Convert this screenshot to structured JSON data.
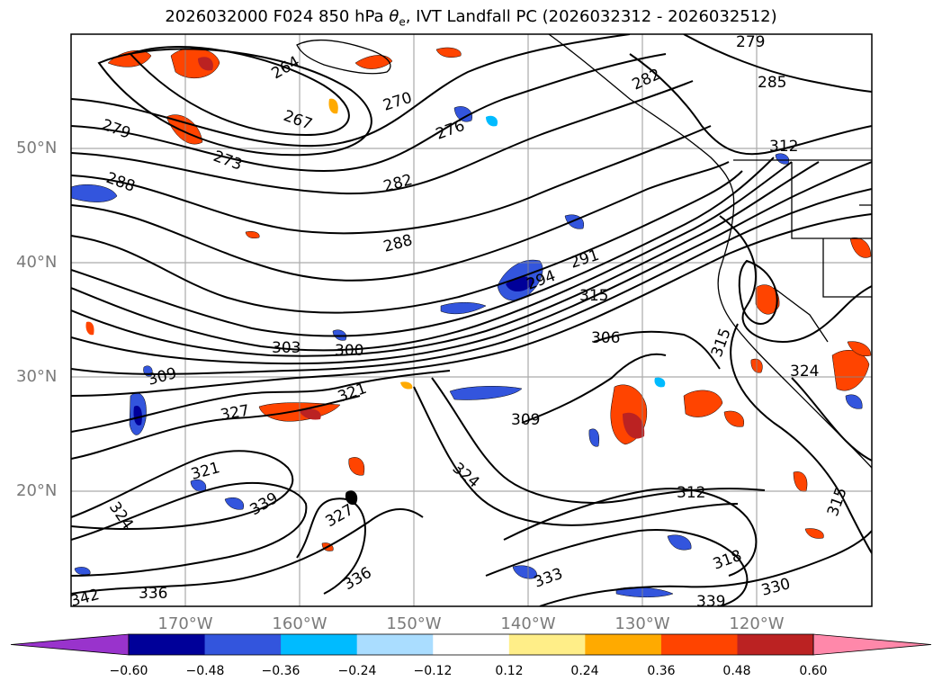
{
  "title": {
    "prefix": "2026032000 F024 850 hPa ",
    "theta": "θ",
    "theta_sub": "e",
    "suffix": ", IVT Landfall PC (2026032312 - 2026032512)"
  },
  "latitude_labels": [
    "50°N",
    "40°N",
    "30°N",
    "20°N"
  ],
  "longitude_labels": [
    "170°W",
    "160°W",
    "150°W",
    "140°W",
    "130°W",
    "120°W"
  ],
  "colorbar": {
    "ticks": [
      "−0.60",
      "−0.48",
      "−0.36",
      "−0.24",
      "−0.12",
      "0.12",
      "0.24",
      "0.36",
      "0.48",
      "0.60"
    ],
    "colors": [
      "#9933cc",
      "#000099",
      "#3355dd",
      "#00bbff",
      "#aaddff",
      "#ffffff",
      "#ffee88",
      "#ffaa00",
      "#ff4400",
      "#bb2222",
      "#ff88aa"
    ]
  },
  "contour_labels": [
    {
      "text": "279"
    },
    {
      "text": "264"
    },
    {
      "text": "282"
    },
    {
      "text": "285"
    },
    {
      "text": "270"
    },
    {
      "text": "267"
    },
    {
      "text": "276"
    },
    {
      "text": "279"
    },
    {
      "text": "273"
    },
    {
      "text": "288"
    },
    {
      "text": "282"
    },
    {
      "text": "312"
    },
    {
      "text": "288"
    },
    {
      "text": "291"
    },
    {
      "text": "294"
    },
    {
      "text": "315"
    },
    {
      "text": "300"
    },
    {
      "text": "303"
    },
    {
      "text": "306"
    },
    {
      "text": "309"
    },
    {
      "text": "321"
    },
    {
      "text": "327"
    },
    {
      "text": "309"
    },
    {
      "text": "324"
    },
    {
      "text": "321"
    },
    {
      "text": "339"
    },
    {
      "text": "327"
    },
    {
      "text": "324"
    },
    {
      "text": "312"
    },
    {
      "text": "315"
    },
    {
      "text": "318"
    },
    {
      "text": "336"
    },
    {
      "text": "336"
    },
    {
      "text": "333"
    },
    {
      "text": "339"
    },
    {
      "text": "330"
    },
    {
      "text": "342"
    },
    {
      "text": "315"
    },
    {
      "text": "324"
    }
  ]
}
